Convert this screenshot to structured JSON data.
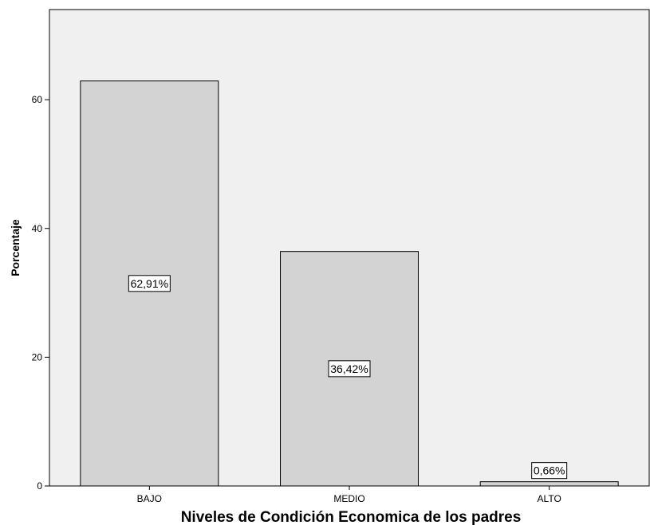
{
  "chart_data": {
    "type": "bar",
    "title": "",
    "xlabel": "Niveles de Condición Economica de los padres",
    "ylabel": "Porcentaje",
    "ylim": [
      0,
      74
    ],
    "yticks": [
      0,
      20,
      40,
      60
    ],
    "grid": false,
    "categories": [
      "BAJO",
      "MEDIO",
      "ALTO"
    ],
    "values": [
      62.91,
      36.42,
      0.66
    ],
    "data_labels": [
      "62,91%",
      "36,42%",
      "0,66%"
    ],
    "colors": {
      "plot_background": "#f0f0f0",
      "bar_fill": "#d3d3d3",
      "bar_stroke": "#000000"
    }
  }
}
